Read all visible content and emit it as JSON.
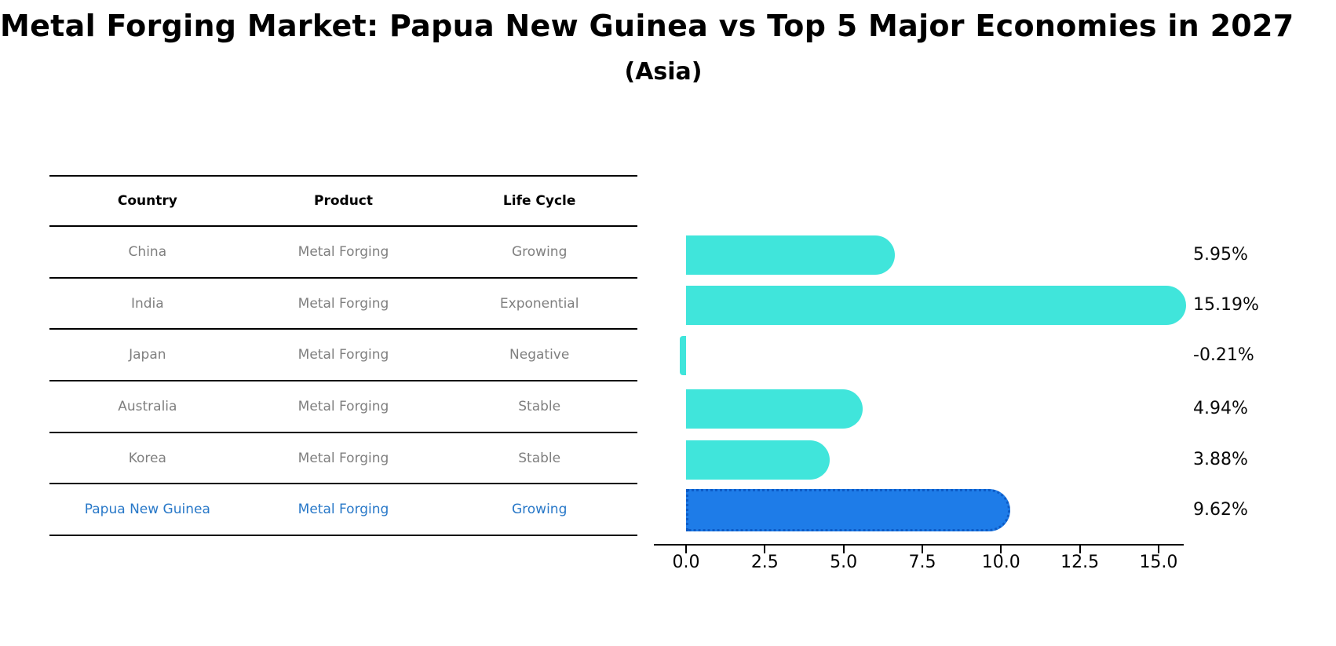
{
  "title": "Metal Forging Market: Papua New Guinea vs Top 5 Major Economies in 2027",
  "subtitle": "(Asia)",
  "colors": {
    "bar_default": "#40E5DB",
    "bar_highlight": "#1E7CE8",
    "bar_highlight_border": "#0D5BC6",
    "table_text": "#7f7f7f",
    "table_header_text": "#000000",
    "highlight_text": "#2878C8",
    "axis": "#000000",
    "value_label_text": "#0a0a0a"
  },
  "table": {
    "headers": [
      "Country",
      "Product",
      "Life Cycle"
    ],
    "rows": [
      {
        "country": "China",
        "product": "Metal Forging",
        "life_cycle": "Growing",
        "highlight": false
      },
      {
        "country": "India",
        "product": "Metal Forging",
        "life_cycle": "Exponential",
        "highlight": false
      },
      {
        "country": "Japan",
        "product": "Metal Forging",
        "life_cycle": "Negative",
        "highlight": false
      },
      {
        "country": "Australia",
        "product": "Metal Forging",
        "life_cycle": "Stable",
        "highlight": false
      },
      {
        "country": "Korea",
        "product": "Metal Forging",
        "life_cycle": "Stable",
        "highlight": false
      },
      {
        "country": "Papua New Guinea",
        "product": "Metal Forging",
        "life_cycle": "Growing",
        "highlight": true
      }
    ]
  },
  "chart_data": {
    "type": "bar",
    "orientation": "horizontal",
    "title": "Metal Forging Market: Papua New Guinea vs Top 5 Major Economies in 2027 (Asia)",
    "categories": [
      "China",
      "India",
      "Japan",
      "Australia",
      "Korea",
      "Papua New Guinea"
    ],
    "values": [
      5.95,
      15.19,
      -0.21,
      4.94,
      3.88,
      9.62
    ],
    "value_labels": [
      "5.95%",
      "15.19%",
      "-0.21%",
      "4.94%",
      "3.88%",
      "9.62%"
    ],
    "highlight_index": 5,
    "xlabel": "",
    "ylabel": "",
    "x_ticks": [
      "0.0",
      "2.5",
      "5.0",
      "7.5",
      "10.0",
      "12.5",
      "15.0"
    ],
    "x_tick_values": [
      0,
      2.5,
      5,
      7.5,
      10,
      12.5,
      15
    ],
    "xlim": [
      -1.0,
      15.8
    ],
    "grid": false,
    "legend": false
  }
}
